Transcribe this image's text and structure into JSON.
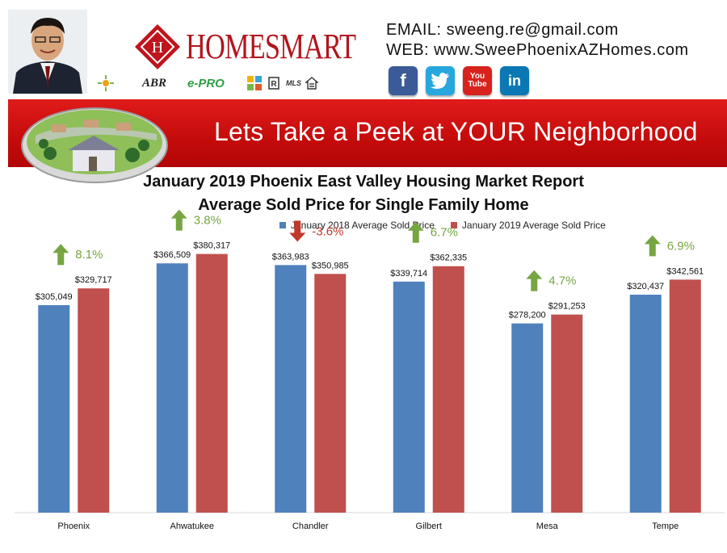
{
  "header": {
    "brand": "HOMESMART",
    "email_line": "EMAIL: sweeng.re@gmail.com",
    "web_line": "WEB: www.SweePhoenixAZHomes.com",
    "certifications": [
      "ABR",
      "e-PRO",
      "MLS"
    ],
    "social": [
      {
        "name": "facebook",
        "glyph": "f",
        "color": "#3b5a98"
      },
      {
        "name": "twitter",
        "glyph": "t",
        "color": "#27a7de"
      },
      {
        "name": "youtube",
        "glyph": "You Tube",
        "color": "#d8231c"
      },
      {
        "name": "linkedin",
        "glyph": "in",
        "color": "#0b78b4"
      }
    ]
  },
  "banner": {
    "title": "Lets Take a Peek at YOUR Neighborhood"
  },
  "colors": {
    "series_2018": "#4f81bd",
    "series_2019": "#c0504d",
    "up": "#77a541",
    "down": "#c0392b"
  },
  "chart_data": {
    "type": "bar",
    "title": "January 2019 Phoenix East Valley Housing Market Report",
    "subtitle": "Average Sold Price for Single Family Home",
    "categories": [
      "Phoenix",
      "Ahwatukee",
      "Chandler",
      "Gilbert",
      "Mesa",
      "Tempe"
    ],
    "series": [
      {
        "name": "January 2018 Average Sold Price",
        "values": [
          305049,
          366509,
          363983,
          339714,
          278200,
          320437
        ]
      },
      {
        "name": "January 2019 Average Sold Price",
        "values": [
          329717,
          380317,
          350985,
          362335,
          291253,
          342561
        ]
      }
    ],
    "value_labels": [
      [
        "$305,049",
        "$366,509",
        "$363,983",
        "$339,714",
        "$278,200",
        "$320,437"
      ],
      [
        "$329,717",
        "$380,317",
        "$350,985",
        "$362,335",
        "$291,253",
        "$342,561"
      ]
    ],
    "changes": [
      {
        "label": "8.1%",
        "direction": "up"
      },
      {
        "label": "3.8%",
        "direction": "up"
      },
      {
        "label": "-3.6%",
        "direction": "down"
      },
      {
        "label": "6.7%",
        "direction": "up"
      },
      {
        "label": "4.7%",
        "direction": "up"
      },
      {
        "label": "6.9%",
        "direction": "up"
      }
    ],
    "ylim": [
      0,
      400000
    ],
    "grid": false,
    "legend_position": "top"
  }
}
